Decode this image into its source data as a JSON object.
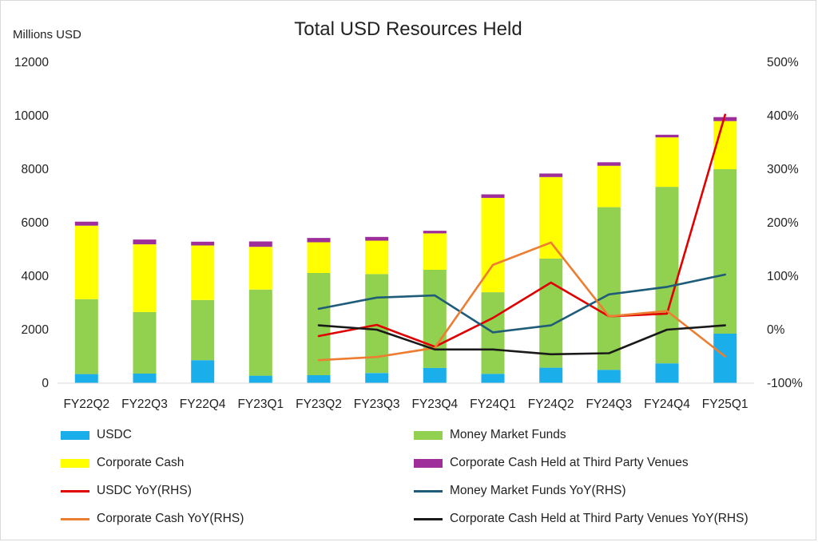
{
  "chart_data": {
    "type": "bar",
    "subtype": "stacked-bar-with-lines",
    "title": "Total USD Resources Held",
    "ylabel": "Millions USD",
    "ylim": [
      0,
      12000
    ],
    "y_ticks": [
      "0",
      "2000",
      "4000",
      "6000",
      "8000",
      "10000",
      "12000"
    ],
    "y2lim": [
      -100,
      500
    ],
    "y2_ticks": [
      "-100%",
      "0%",
      "100%",
      "200%",
      "300%",
      "400%",
      "500%"
    ],
    "categories": [
      "FY22Q2",
      "FY22Q3",
      "FY22Q4",
      "FY23Q1",
      "FY23Q2",
      "FY23Q3",
      "FY23Q4",
      "FY24Q1",
      "FY24Q2",
      "FY24Q3",
      "FY24Q4",
      "FY25Q1"
    ],
    "grid": false,
    "legend_position": "bottom",
    "series": [
      {
        "name": "USDC",
        "kind": "bar",
        "axis": "left",
        "color": "#1AAEEB",
        "values": [
          340,
          360,
          860,
          280,
          300,
          380,
          570,
          350,
          580,
          500,
          740,
          1850
        ]
      },
      {
        "name": "Money Market Funds",
        "kind": "bar",
        "axis": "left",
        "color": "#92D050",
        "values": [
          2800,
          2300,
          2250,
          3220,
          3820,
          3700,
          3670,
          3050,
          4080,
          6080,
          6600,
          6150
        ]
      },
      {
        "name": "Corporate Cash",
        "kind": "bar",
        "axis": "left",
        "color": "#FFFF00",
        "values": [
          2750,
          2530,
          2040,
          1600,
          1150,
          1250,
          1360,
          3530,
          3050,
          1550,
          1850,
          1800
        ]
      },
      {
        "name": "Corporate Cash Held at Third Party Venues",
        "kind": "bar",
        "axis": "left",
        "color": "#9E2F9A",
        "values": [
          150,
          180,
          140,
          200,
          160,
          140,
          100,
          130,
          130,
          130,
          100,
          150
        ]
      },
      {
        "name": "USDC YoY(RHS)",
        "kind": "line",
        "axis": "right",
        "color": "#E00000",
        "values": [
          null,
          null,
          null,
          null,
          -12,
          9,
          -32,
          22,
          88,
          25,
          30,
          402
        ]
      },
      {
        "name": "Money Market Funds YoY(RHS)",
        "kind": "line",
        "axis": "right",
        "color": "#1F5C7A",
        "values": [
          null,
          null,
          null,
          null,
          39,
          60,
          64,
          -5,
          8,
          66,
          80,
          103
        ]
      },
      {
        "name": "Corporate Cash YoY(RHS)",
        "kind": "line",
        "axis": "right",
        "color": "#ED7D31",
        "values": [
          null,
          null,
          null,
          null,
          -57,
          -51,
          -34,
          121,
          163,
          25,
          35,
          -50
        ]
      },
      {
        "name": "Corporate Cash Held at Third Party Venues YoY(RHS)",
        "kind": "line",
        "axis": "right",
        "color": "#1A1A1A",
        "values": [
          null,
          null,
          null,
          null,
          8,
          0,
          -37,
          -37,
          -46,
          -44,
          0,
          8
        ]
      }
    ]
  }
}
